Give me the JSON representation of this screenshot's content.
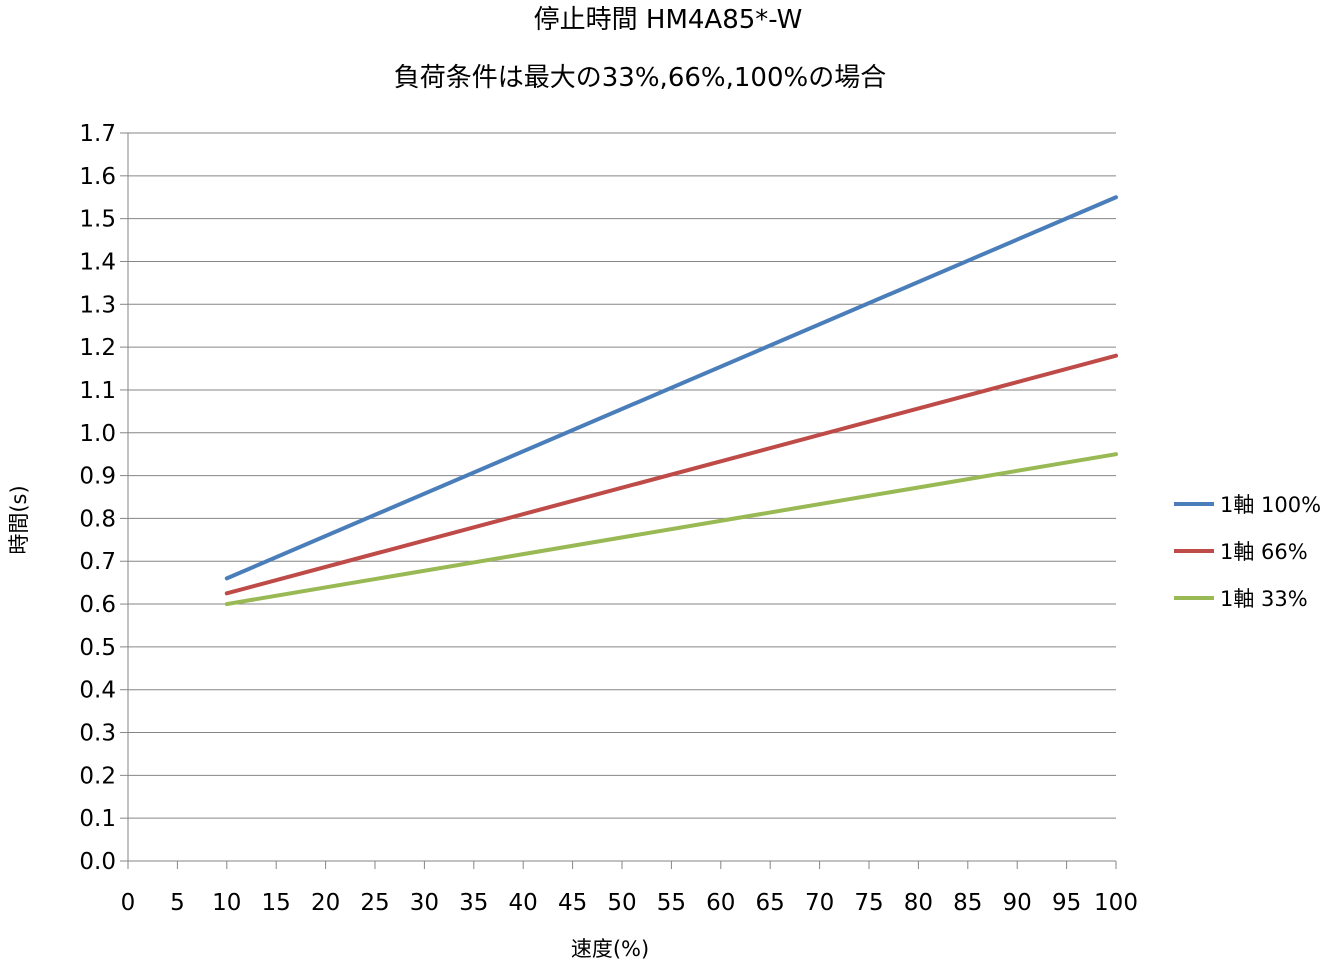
{
  "chart_data": {
    "type": "line",
    "title": "停止時間 HM4A85*-W",
    "subtitle": "負荷条件は最大の33%,66%,100%の場合",
    "xlabel": "速度(%)",
    "ylabel": "時間(s)",
    "xlim": [
      0,
      100
    ],
    "ylim": [
      0.0,
      1.7
    ],
    "x_ticks": [
      "0",
      "5",
      "10",
      "15",
      "20",
      "25",
      "30",
      "35",
      "40",
      "45",
      "50",
      "55",
      "60",
      "65",
      "70",
      "75",
      "80",
      "85",
      "90",
      "95",
      "100"
    ],
    "y_ticks": [
      "0.0",
      "0.1",
      "0.2",
      "0.3",
      "0.4",
      "0.5",
      "0.6",
      "0.7",
      "0.8",
      "0.9",
      "1.0",
      "1.1",
      "1.2",
      "1.3",
      "1.4",
      "1.5",
      "1.6",
      "1.7"
    ],
    "x": [
      10,
      100
    ],
    "grid": "horizontal",
    "legend_position": "right",
    "series": [
      {
        "name": "1軸 100%",
        "color": "#4a7ebb",
        "values": [
          0.66,
          1.55
        ]
      },
      {
        "name": "1軸 66%",
        "color": "#be4b48",
        "values": [
          0.625,
          1.18
        ]
      },
      {
        "name": "1軸 33%",
        "color": "#98b954",
        "values": [
          0.6,
          0.95
        ]
      }
    ]
  }
}
